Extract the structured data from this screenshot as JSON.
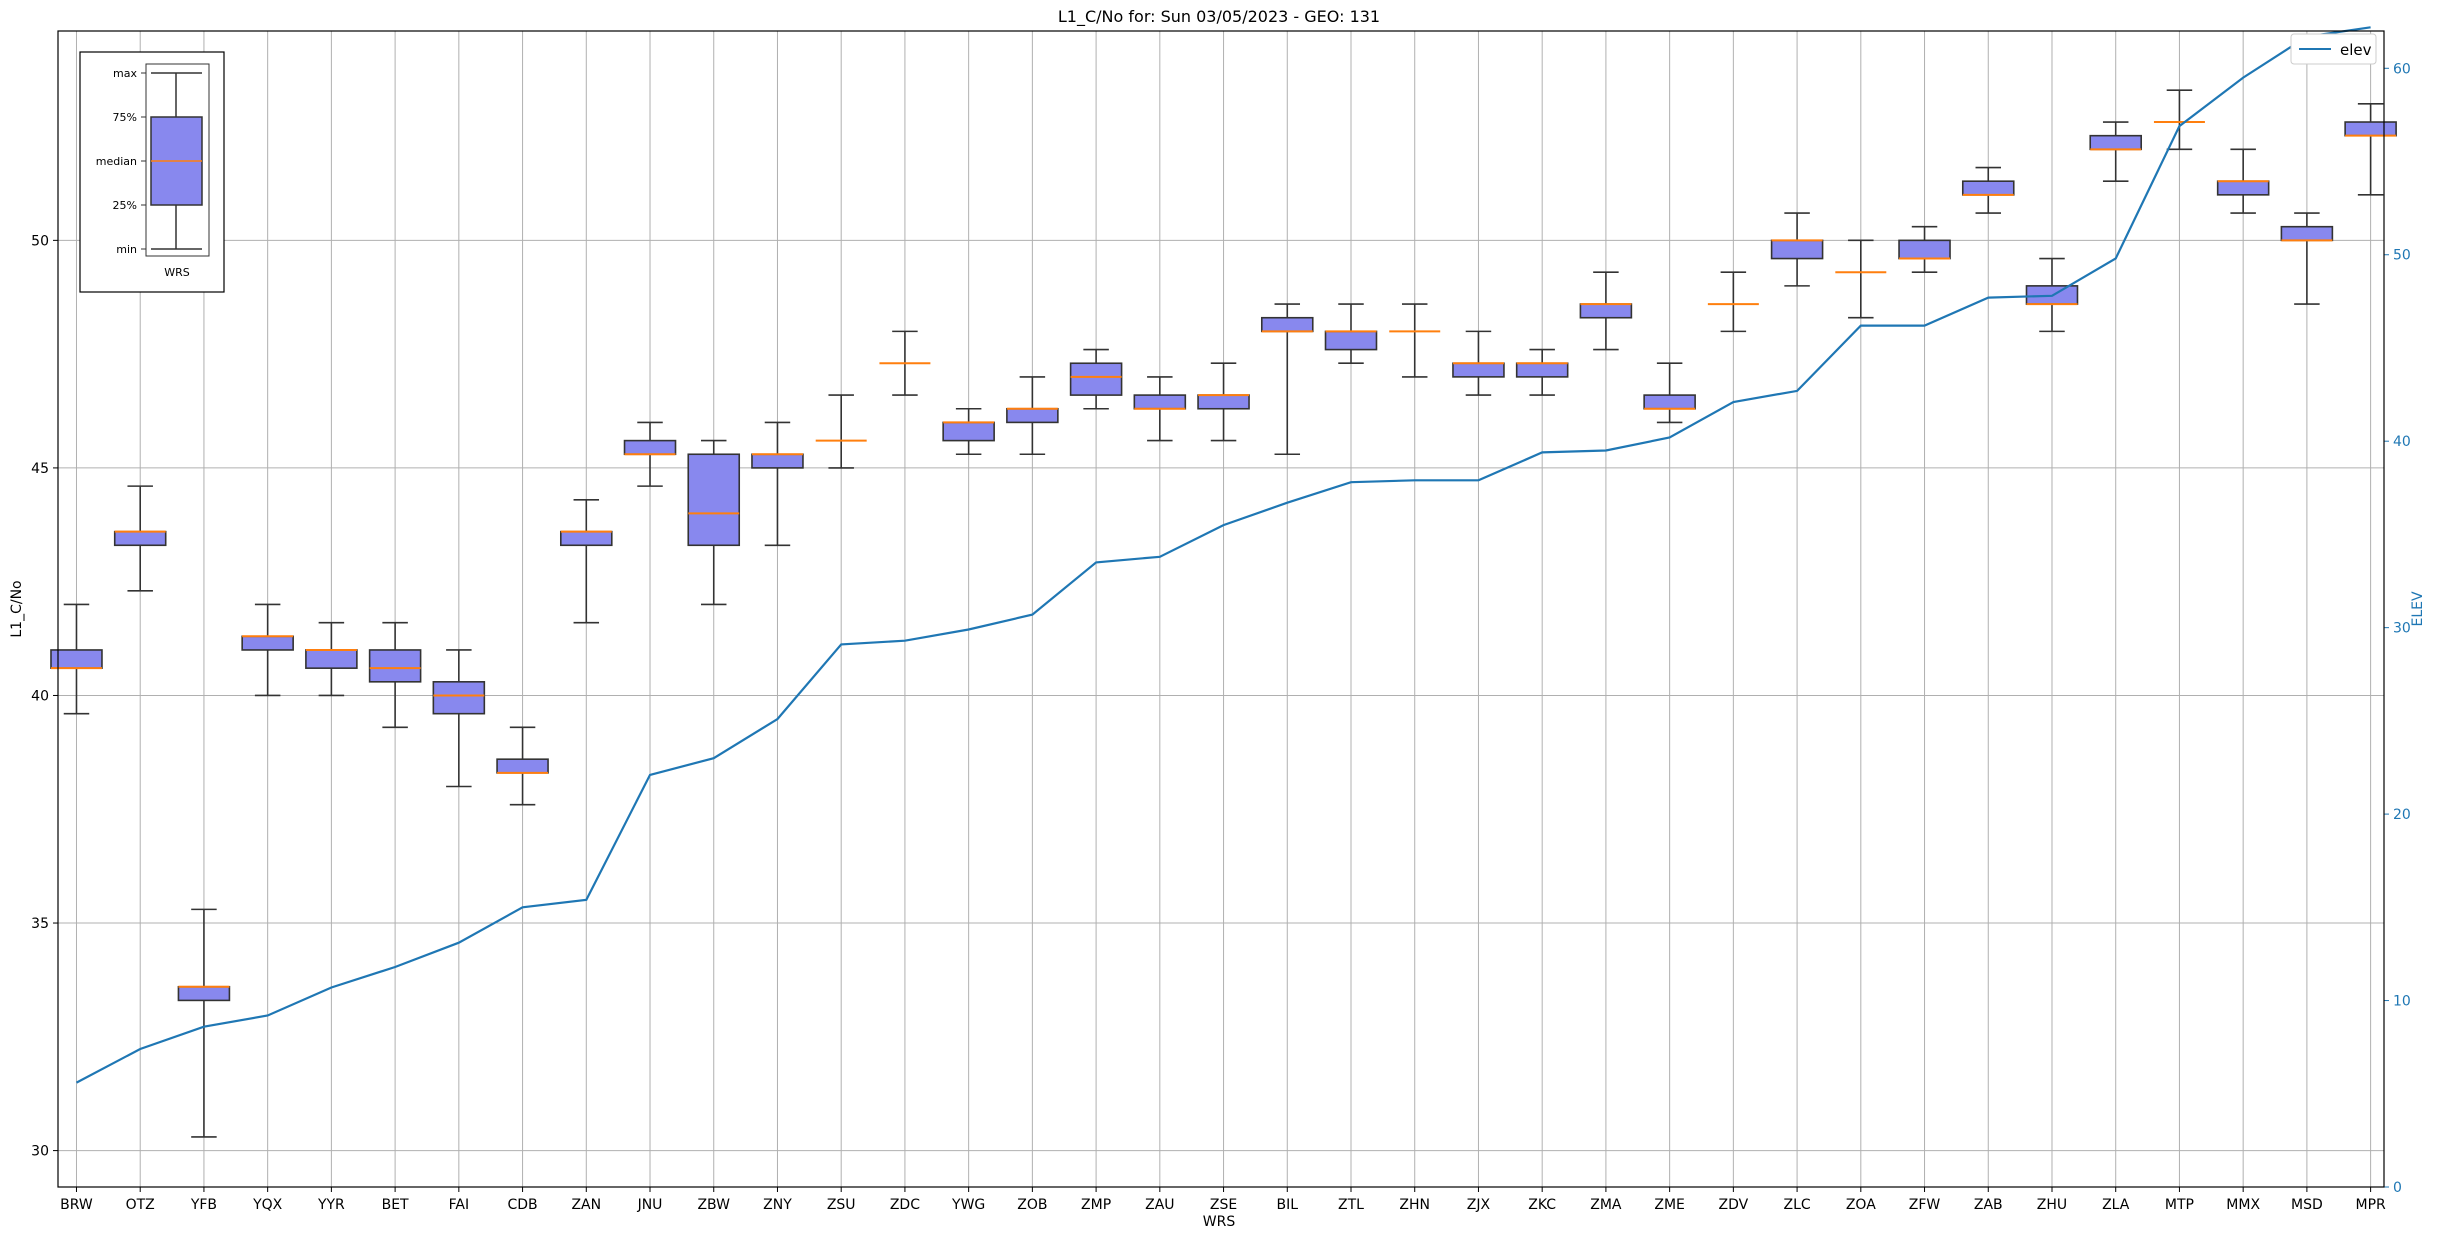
{
  "chart_data": {
    "type": "box",
    "title": "L1_C/No for: Sun 03/05/2023 - GEO: 131",
    "xlabel": "WRS",
    "ylabel": "L1_C/No",
    "y2label": "ELEV",
    "ylim": [
      29.2,
      54.6
    ],
    "y2lim": [
      0,
      62
    ],
    "yticks": [
      "30",
      "35",
      "40",
      "45",
      "50"
    ],
    "y2ticks": [
      "0",
      "10",
      "20",
      "30",
      "40",
      "50",
      "60"
    ],
    "grid": true,
    "legend": {
      "position": "top-right",
      "label": "elev"
    },
    "colors": {
      "box_fill": "#8888ee",
      "median": "#ff7f0e",
      "line": "#1f77b4",
      "whisker": "#333333"
    },
    "key": {
      "xlabel": "WRS",
      "labels": [
        "max",
        "75%",
        "median",
        "25%",
        "min"
      ]
    },
    "categories": [
      "BRW",
      "OTZ",
      "YFB",
      "YQX",
      "YYR",
      "BET",
      "FAI",
      "CDB",
      "ZAN",
      "JNU",
      "ZBW",
      "ZNY",
      "ZSU",
      "ZDC",
      "YWG",
      "ZOB",
      "ZMP",
      "ZAU",
      "ZSE",
      "BIL",
      "ZTL",
      "ZHN",
      "ZJX",
      "ZKC",
      "ZMA",
      "ZME",
      "ZDV",
      "ZLC",
      "ZOA",
      "ZFW",
      "ZAB",
      "ZHU",
      "ZLA",
      "MTP",
      "MMX",
      "MSD",
      "MPR"
    ],
    "boxes": [
      {
        "min": 39.6,
        "q1": 40.6,
        "median": 40.6,
        "q3": 41.0,
        "max": 42.0
      },
      {
        "min": 42.3,
        "q1": 43.3,
        "median": 43.6,
        "q3": 43.6,
        "max": 44.6
      },
      {
        "min": 30.3,
        "q1": 33.3,
        "median": 33.6,
        "q3": 33.6,
        "max": 35.3
      },
      {
        "min": 40.0,
        "q1": 41.0,
        "median": 41.3,
        "q3": 41.3,
        "max": 42.0
      },
      {
        "min": 40.0,
        "q1": 40.6,
        "median": 41.0,
        "q3": 41.0,
        "max": 41.6
      },
      {
        "min": 39.3,
        "q1": 40.3,
        "median": 40.6,
        "q3": 41.0,
        "max": 41.6
      },
      {
        "min": 38.0,
        "q1": 39.6,
        "median": 40.0,
        "q3": 40.3,
        "max": 41.0
      },
      {
        "min": 37.6,
        "q1": 38.3,
        "median": 38.3,
        "q3": 38.6,
        "max": 39.3
      },
      {
        "min": 41.6,
        "q1": 43.3,
        "median": 43.6,
        "q3": 43.6,
        "max": 44.3
      },
      {
        "min": 44.6,
        "q1": 45.3,
        "median": 45.3,
        "q3": 45.6,
        "max": 46.0
      },
      {
        "min": 42.0,
        "q1": 43.3,
        "median": 44.0,
        "q3": 45.3,
        "max": 45.6
      },
      {
        "min": 43.3,
        "q1": 45.0,
        "median": 45.3,
        "q3": 45.3,
        "max": 46.0
      },
      {
        "min": 45.0,
        "q1": 45.6,
        "median": 45.6,
        "q3": 45.6,
        "max": 46.6
      },
      {
        "min": 46.6,
        "q1": 47.3,
        "median": 47.3,
        "q3": 47.3,
        "max": 48.0
      },
      {
        "min": 45.3,
        "q1": 45.6,
        "median": 46.0,
        "q3": 46.0,
        "max": 46.3
      },
      {
        "min": 45.3,
        "q1": 46.0,
        "median": 46.3,
        "q3": 46.3,
        "max": 47.0
      },
      {
        "min": 46.3,
        "q1": 46.6,
        "median": 47.0,
        "q3": 47.3,
        "max": 47.6
      },
      {
        "min": 45.6,
        "q1": 46.3,
        "median": 46.3,
        "q3": 46.6,
        "max": 47.0
      },
      {
        "min": 45.6,
        "q1": 46.3,
        "median": 46.6,
        "q3": 46.6,
        "max": 47.3
      },
      {
        "min": 45.3,
        "q1": 48.0,
        "median": 48.0,
        "q3": 48.3,
        "max": 48.6
      },
      {
        "min": 47.3,
        "q1": 47.6,
        "median": 48.0,
        "q3": 48.0,
        "max": 48.6
      },
      {
        "min": 47.0,
        "q1": 48.0,
        "median": 48.0,
        "q3": 48.0,
        "max": 48.6
      },
      {
        "min": 46.6,
        "q1": 47.0,
        "median": 47.3,
        "q3": 47.3,
        "max": 48.0
      },
      {
        "min": 46.6,
        "q1": 47.0,
        "median": 47.3,
        "q3": 47.3,
        "max": 47.6
      },
      {
        "min": 47.6,
        "q1": 48.3,
        "median": 48.6,
        "q3": 48.6,
        "max": 49.3
      },
      {
        "min": 46.0,
        "q1": 46.3,
        "median": 46.3,
        "q3": 46.6,
        "max": 47.3
      },
      {
        "min": 48.0,
        "q1": 48.6,
        "median": 48.6,
        "q3": 48.6,
        "max": 49.3
      },
      {
        "min": 49.0,
        "q1": 49.6,
        "median": 50.0,
        "q3": 50.0,
        "max": 50.6
      },
      {
        "min": 48.3,
        "q1": 49.3,
        "median": 49.3,
        "q3": 49.3,
        "max": 50.0
      },
      {
        "min": 49.3,
        "q1": 49.6,
        "median": 49.6,
        "q3": 50.0,
        "max": 50.3
      },
      {
        "min": 50.6,
        "q1": 51.0,
        "median": 51.0,
        "q3": 51.3,
        "max": 51.6
      },
      {
        "min": 48.0,
        "q1": 48.6,
        "median": 48.6,
        "q3": 49.0,
        "max": 49.6
      },
      {
        "min": 51.3,
        "q1": 52.0,
        "median": 52.0,
        "q3": 52.3,
        "max": 52.6
      },
      {
        "min": 52.0,
        "q1": 52.6,
        "median": 52.6,
        "q3": 52.6,
        "max": 53.3
      },
      {
        "min": 50.6,
        "q1": 51.0,
        "median": 51.3,
        "q3": 51.3,
        "max": 52.0
      },
      {
        "min": 48.6,
        "q1": 50.0,
        "median": 50.0,
        "q3": 50.3,
        "max": 50.6
      },
      {
        "min": 51.0,
        "q1": 52.3,
        "median": 52.3,
        "q3": 52.6,
        "max": 53.0
      }
    ],
    "series": [
      {
        "name": "elev",
        "axis": "right",
        "values": [
          5.6,
          7.4,
          8.6,
          9.2,
          10.7,
          11.8,
          13.1,
          15.0,
          15.4,
          22.1,
          23.0,
          25.1,
          29.1,
          29.3,
          29.9,
          30.7,
          33.5,
          33.8,
          35.5,
          36.7,
          37.8,
          37.9,
          37.9,
          39.4,
          39.5,
          40.2,
          42.1,
          42.7,
          46.2,
          46.2,
          47.7,
          47.8,
          49.8,
          56.9,
          59.5,
          61.7,
          62.2
        ]
      }
    ]
  }
}
